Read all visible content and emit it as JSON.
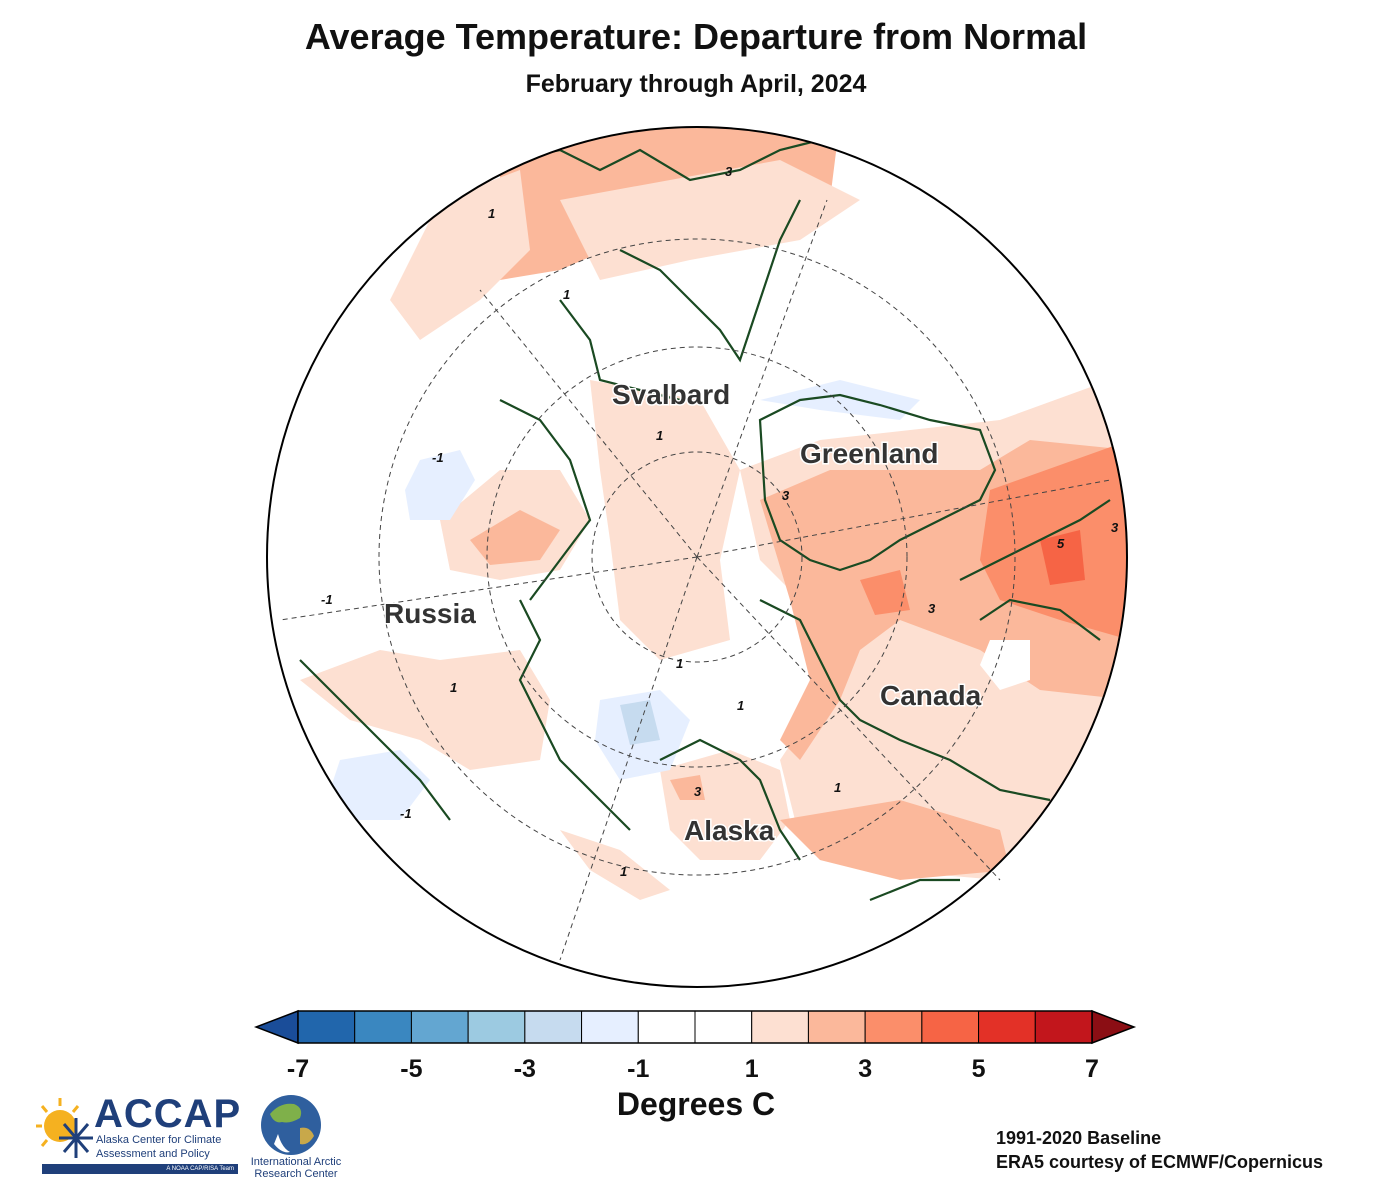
{
  "header": {
    "title": "Average Temperature: Departure from Normal",
    "subtitle": "February through April, 2024"
  },
  "regions": {
    "svalbard": "Svalbard",
    "greenland": "Greenland",
    "russia": "Russia",
    "canada": "Canada",
    "alaska": "Alaska"
  },
  "contour_labels": {
    "l1": "1",
    "l2": "1",
    "l3": "1",
    "l4": "-1",
    "l5": "1",
    "l6": "3",
    "l7": "3",
    "l8": "5",
    "l9": "3",
    "l10": "3",
    "l11": "1",
    "l12": "1",
    "l13": "3",
    "l14": "-1",
    "l15": "1",
    "l16": "1",
    "l17": "-1"
  },
  "colorbar": {
    "ticks": [
      "-7",
      "-5",
      "-3",
      "-1",
      "1",
      "3",
      "5",
      "7"
    ],
    "label": "Degrees C",
    "colors": [
      "#2166ac",
      "#3a87c0",
      "#63a6d1",
      "#9ccae1",
      "#c6dbef",
      "#e6efff",
      "#ffffff",
      "#ffffff",
      "#fde0d2",
      "#fbb89b",
      "#fb8e6a",
      "#f66445",
      "#e33127",
      "#c2161c"
    ],
    "arrow_low": "#1a4d99",
    "arrow_high": "#8b0e14"
  },
  "logos": {
    "accap": {
      "name": "ACCAP",
      "line1": "Alaska Center for Climate",
      "line2": "Assessment and Policy",
      "bar": "A NOAA CAP/RISA Team"
    },
    "iarc": {
      "line1": "International Arctic",
      "line2": "Research Center"
    }
  },
  "credits": {
    "baseline": "1991-2020 Baseline",
    "source": "ERA5 courtesy of ECMWF/Copernicus"
  }
}
